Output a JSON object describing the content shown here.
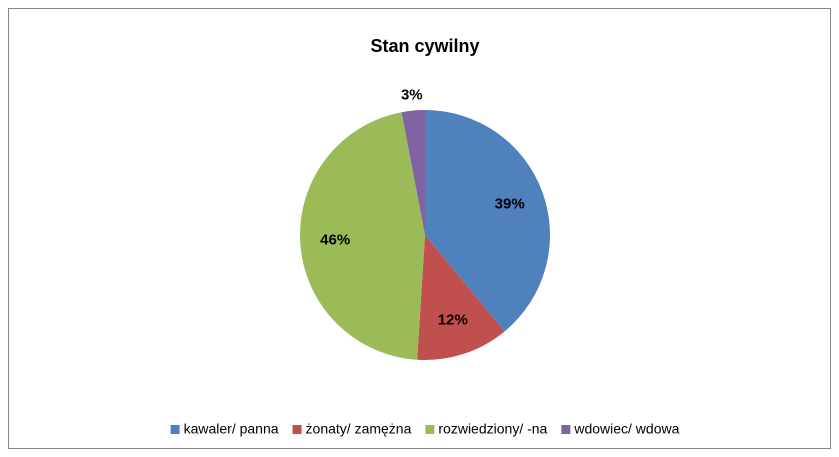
{
  "chart_data": {
    "type": "pie",
    "title": "Stan cywilny",
    "categories": [
      "kawaler/ panna",
      "żonaty/ zamężna",
      "rozwiedziony/ -na",
      "wdowiec/ wdowa"
    ],
    "values": [
      39,
      12,
      46,
      3
    ],
    "value_labels": [
      "39%",
      "12%",
      "46%",
      "3%"
    ],
    "colors": [
      "#4f81bd",
      "#c0504d",
      "#9bbb59",
      "#8064a2"
    ],
    "legend": "bottom"
  }
}
